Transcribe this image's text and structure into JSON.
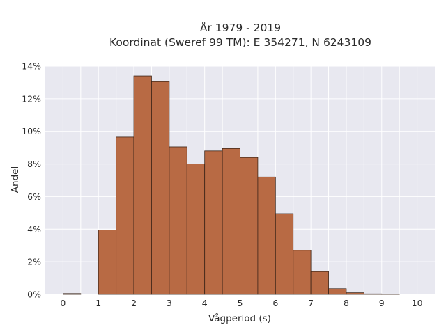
{
  "chart_data": {
    "type": "bar",
    "title_line1": "År 1979 - 2019",
    "title_line2": "Koordinat (Sweref 99 TM): E 354271, N 6243109",
    "xlabel": "Vågperiod (s)",
    "ylabel": "Andel",
    "bin_width": 0.5,
    "bins": [
      {
        "x": 0.0,
        "value": 0.05
      },
      {
        "x": 0.5,
        "value": 0.0
      },
      {
        "x": 1.0,
        "value": 3.95
      },
      {
        "x": 1.5,
        "value": 9.65
      },
      {
        "x": 2.0,
        "value": 13.4
      },
      {
        "x": 2.5,
        "value": 13.05
      },
      {
        "x": 3.0,
        "value": 9.05
      },
      {
        "x": 3.5,
        "value": 8.0
      },
      {
        "x": 4.0,
        "value": 8.8
      },
      {
        "x": 4.5,
        "value": 8.95
      },
      {
        "x": 5.0,
        "value": 8.4
      },
      {
        "x": 5.5,
        "value": 7.2
      },
      {
        "x": 6.0,
        "value": 4.95
      },
      {
        "x": 6.5,
        "value": 2.7
      },
      {
        "x": 7.0,
        "value": 1.4
      },
      {
        "x": 7.5,
        "value": 0.35
      },
      {
        "x": 8.0,
        "value": 0.1
      },
      {
        "x": 8.5,
        "value": 0.03
      },
      {
        "x": 9.0,
        "value": 0.02
      },
      {
        "x": 9.5,
        "value": 0.0
      }
    ],
    "xlim": [
      -0.5,
      10.5
    ],
    "ylim": [
      0,
      14
    ],
    "x_ticks": [
      "0",
      "1",
      "2",
      "3",
      "4",
      "5",
      "6",
      "7",
      "8",
      "9",
      "10"
    ],
    "y_ticks": [
      "0%",
      "2%",
      "4%",
      "6%",
      "8%",
      "10%",
      "12%",
      "14%"
    ],
    "grid": true,
    "bar_color": "#b86a44",
    "bar_edge_color": "#3b2418",
    "plot_background": "#e8e8f0",
    "grid_color": "#ffffff"
  }
}
